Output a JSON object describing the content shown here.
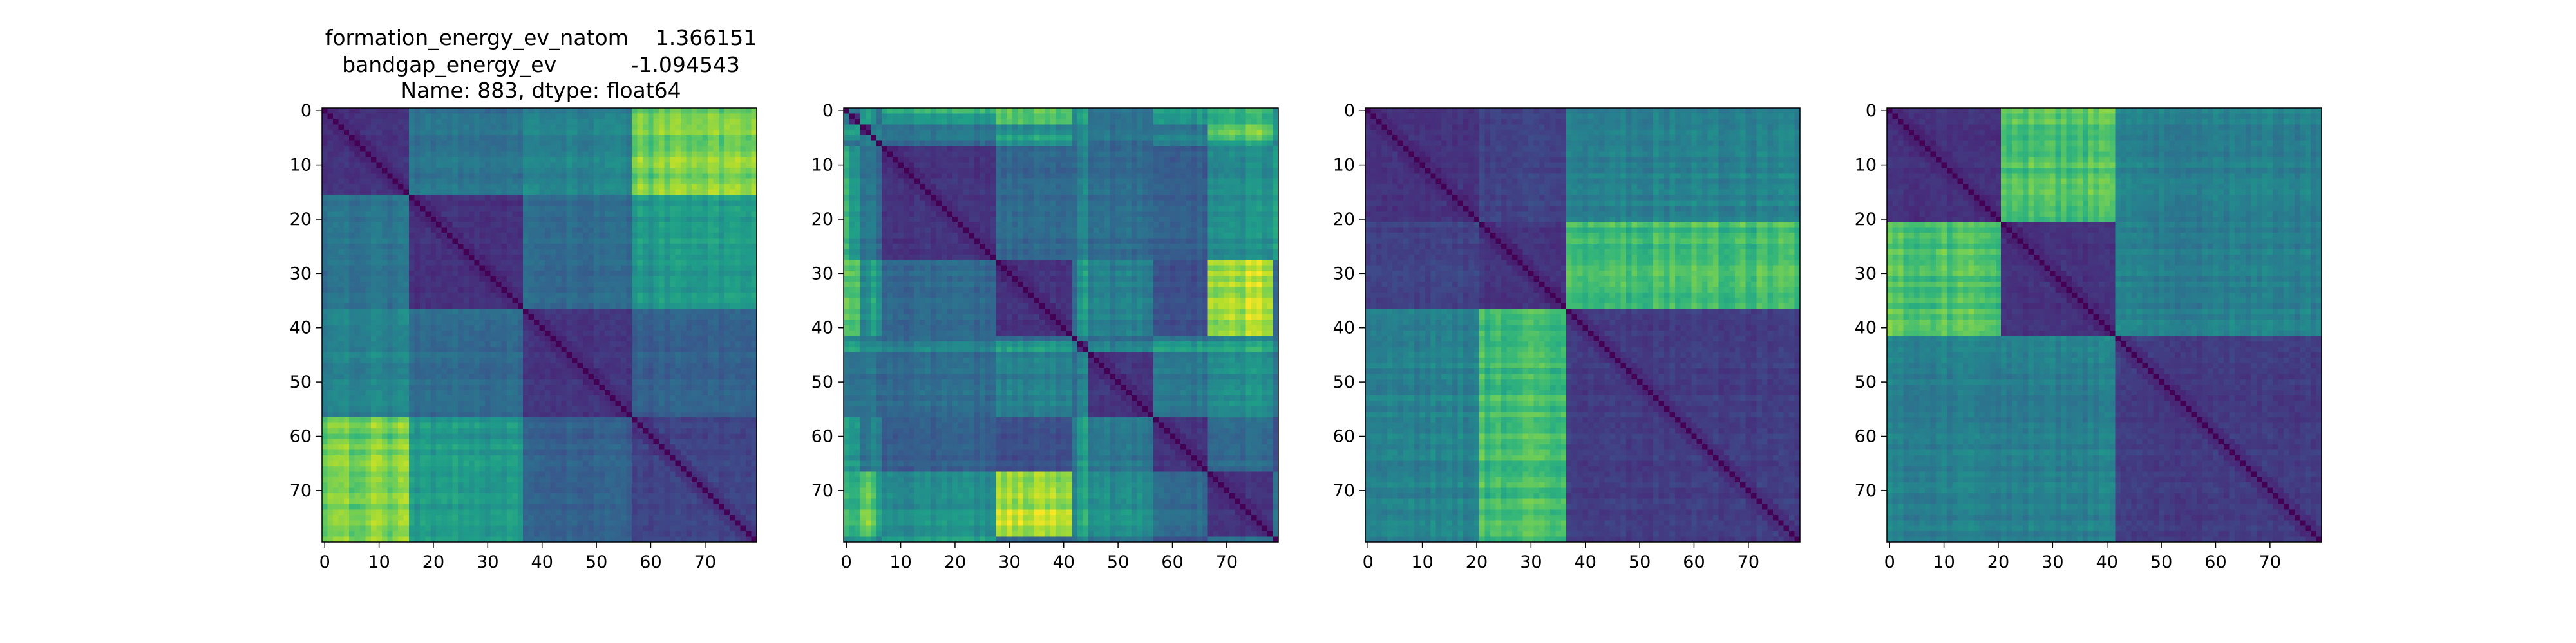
{
  "figure": {
    "title_lines": [
      "formation_energy_ev_natom    1.366151",
      "bandgap_energy_ev           -1.094543",
      "Name: 883, dtype: float64"
    ]
  },
  "chart_data": [
    {
      "type": "heatmap",
      "title": "",
      "xlabel": "",
      "ylabel": "",
      "size": 80,
      "xlim": [
        0,
        79
      ],
      "ylim": [
        79,
        0
      ],
      "xticks": [
        0,
        10,
        20,
        30,
        40,
        50,
        60,
        70
      ],
      "yticks": [
        0,
        10,
        20,
        30,
        40,
        50,
        60,
        70
      ],
      "colormap": "viridis",
      "blocks": [
        0,
        16,
        37,
        57,
        80
      ],
      "block_matrix": [
        [
          0.15,
          0.4,
          0.45,
          0.8
        ],
        [
          0.4,
          0.15,
          0.35,
          0.55
        ],
        [
          0.45,
          0.35,
          0.15,
          0.3
        ],
        [
          0.8,
          0.55,
          0.3,
          0.2
        ]
      ],
      "diagonal_value": 0.0
    },
    {
      "type": "heatmap",
      "title": "",
      "xlabel": "",
      "ylabel": "",
      "size": 80,
      "xlim": [
        0,
        79
      ],
      "ylim": [
        79,
        0
      ],
      "xticks": [
        0,
        10,
        20,
        30,
        40,
        50,
        60,
        70
      ],
      "yticks": [
        0,
        10,
        20,
        30,
        40,
        50,
        60,
        70
      ],
      "colormap": "viridis",
      "blocks": [
        0,
        1,
        3,
        5,
        6,
        7,
        28,
        42,
        43,
        45,
        57,
        67,
        79,
        80
      ],
      "block_matrix": [
        [
          0.2,
          0.4,
          0.6,
          0.5,
          0.4,
          0.7,
          0.8,
          0.5,
          0.6,
          0.4,
          0.6,
          0.7,
          0.5
        ],
        [
          0.4,
          0.15,
          0.55,
          0.45,
          0.35,
          0.5,
          0.7,
          0.45,
          0.55,
          0.35,
          0.5,
          0.6,
          0.5
        ],
        [
          0.6,
          0.55,
          0.15,
          0.4,
          0.5,
          0.4,
          0.5,
          0.4,
          0.5,
          0.4,
          0.4,
          0.8,
          0.6
        ],
        [
          0.5,
          0.45,
          0.4,
          0.15,
          0.45,
          0.4,
          0.6,
          0.4,
          0.45,
          0.4,
          0.45,
          0.7,
          0.5
        ],
        [
          0.4,
          0.35,
          0.5,
          0.45,
          0.15,
          0.35,
          0.55,
          0.4,
          0.5,
          0.35,
          0.45,
          0.6,
          0.45
        ],
        [
          0.7,
          0.5,
          0.4,
          0.4,
          0.35,
          0.15,
          0.35,
          0.35,
          0.45,
          0.35,
          0.3,
          0.5,
          0.6
        ],
        [
          0.8,
          0.7,
          0.5,
          0.6,
          0.55,
          0.35,
          0.15,
          0.35,
          0.55,
          0.45,
          0.25,
          0.9,
          0.35
        ],
        [
          0.5,
          0.45,
          0.4,
          0.4,
          0.4,
          0.35,
          0.35,
          0.15,
          0.4,
          0.35,
          0.4,
          0.45,
          0.4
        ],
        [
          0.6,
          0.55,
          0.5,
          0.45,
          0.5,
          0.45,
          0.55,
          0.4,
          0.15,
          0.45,
          0.55,
          0.6,
          0.45
        ],
        [
          0.4,
          0.35,
          0.4,
          0.4,
          0.35,
          0.35,
          0.45,
          0.35,
          0.45,
          0.15,
          0.4,
          0.5,
          0.4
        ],
        [
          0.6,
          0.5,
          0.4,
          0.45,
          0.45,
          0.3,
          0.25,
          0.4,
          0.55,
          0.4,
          0.15,
          0.35,
          0.25
        ],
        [
          0.7,
          0.6,
          0.8,
          0.7,
          0.6,
          0.5,
          0.9,
          0.45,
          0.6,
          0.5,
          0.35,
          0.15,
          0.4
        ],
        [
          0.5,
          0.5,
          0.6,
          0.5,
          0.45,
          0.6,
          0.35,
          0.4,
          0.45,
          0.4,
          0.25,
          0.4,
          0.15
        ]
      ],
      "diagonal_value": 0.0
    },
    {
      "type": "heatmap",
      "title": "",
      "xlabel": "",
      "ylabel": "",
      "size": 80,
      "xlim": [
        0,
        79
      ],
      "ylim": [
        79,
        0
      ],
      "xticks": [
        0,
        10,
        20,
        30,
        40,
        50,
        60,
        70
      ],
      "yticks": [
        0,
        10,
        20,
        30,
        40,
        50,
        60,
        70
      ],
      "colormap": "viridis",
      "blocks": [
        0,
        21,
        37,
        80
      ],
      "block_matrix": [
        [
          0.15,
          0.2,
          0.45
        ],
        [
          0.2,
          0.15,
          0.7
        ],
        [
          0.45,
          0.7,
          0.18
        ]
      ],
      "diagonal_value": 0.0
    },
    {
      "type": "heatmap",
      "title": "",
      "xlabel": "",
      "ylabel": "",
      "size": 80,
      "xlim": [
        0,
        79
      ],
      "ylim": [
        79,
        0
      ],
      "xticks": [
        0,
        10,
        20,
        30,
        40,
        50,
        60,
        70
      ],
      "yticks": [
        0,
        10,
        20,
        30,
        40,
        50,
        60,
        70
      ],
      "colormap": "viridis",
      "blocks": [
        0,
        21,
        42,
        80
      ],
      "block_matrix": [
        [
          0.15,
          0.75,
          0.45
        ],
        [
          0.75,
          0.15,
          0.45
        ],
        [
          0.45,
          0.45,
          0.18
        ]
      ],
      "diagonal_value": 0.0
    }
  ]
}
